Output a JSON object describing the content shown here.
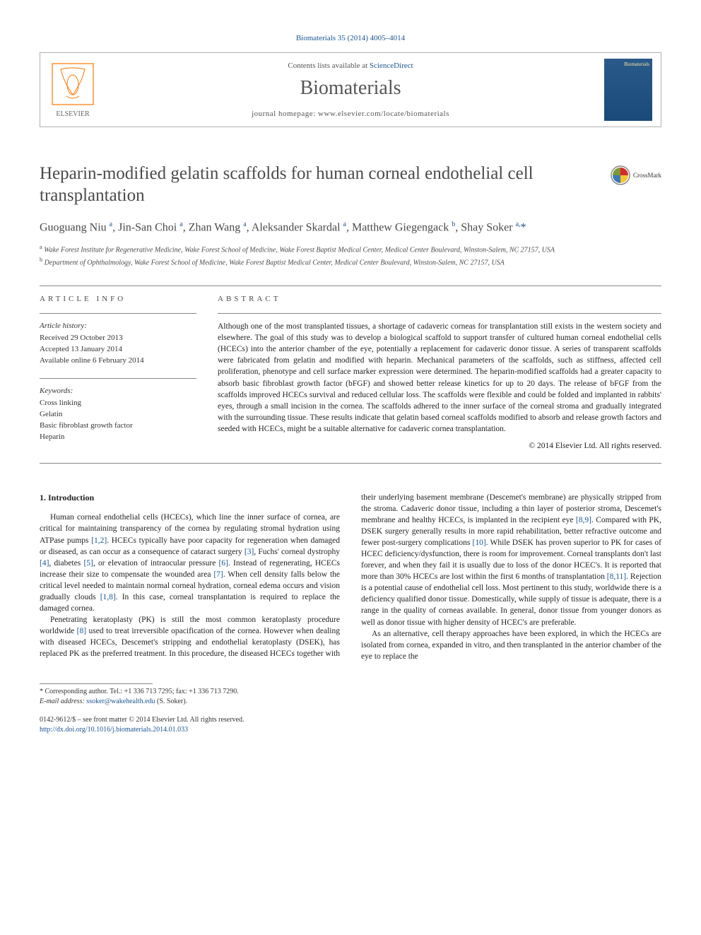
{
  "citation": "Biomaterials 35 (2014) 4005–4014",
  "header": {
    "contents_prefix": "Contents lists available at ",
    "contents_link": "ScienceDirect",
    "journal": "Biomaterials",
    "homepage_prefix": "journal homepage: ",
    "homepage": "www.elsevier.com/locate/biomaterials"
  },
  "title": "Heparin-modified gelatin scaffolds for human corneal endothelial cell transplantation",
  "crossmark_label": "CrossMark",
  "authors_html": "Guoguang Niu <sup>a</sup>, Jin-San Choi <sup>a</sup>, Zhan Wang <sup>a</sup>, Aleksander Skardal <sup>a</sup>, Matthew Giegengack <sup>b</sup>, Shay Soker <sup>a,</sup><span class='corr-star'>*</span>",
  "affiliations": {
    "a": "Wake Forest Institute for Regenerative Medicine, Wake Forest School of Medicine, Wake Forest Baptist Medical Center, Medical Center Boulevard, Winston-Salem, NC 27157, USA",
    "b": "Department of Ophthalmology, Wake Forest School of Medicine, Wake Forest Baptist Medical Center, Medical Center Boulevard, Winston-Salem, NC 27157, USA"
  },
  "info": {
    "heading": "ARTICLE INFO",
    "history_heading": "Article history:",
    "received": "Received 29 October 2013",
    "accepted": "Accepted 13 January 2014",
    "online": "Available online 6 February 2014",
    "keywords_heading": "Keywords:",
    "keywords": [
      "Cross linking",
      "Gelatin",
      "Basic fibroblast growth factor",
      "Heparin"
    ]
  },
  "abstract": {
    "heading": "ABSTRACT",
    "text": "Although one of the most transplanted tissues, a shortage of cadaveric corneas for transplantation still exists in the western society and elsewhere. The goal of this study was to develop a biological scaffold to support transfer of cultured human corneal endothelial cells (HCECs) into the anterior chamber of the eye, potentially a replacement for cadaveric donor tissue. A series of transparent scaffolds were fabricated from gelatin and modified with heparin. Mechanical parameters of the scaffolds, such as stiffness, affected cell proliferation, phenotype and cell surface marker expression were determined. The heparin-modified scaffolds had a greater capacity to absorb basic fibroblast growth factor (bFGF) and showed better release kinetics for up to 20 days. The release of bFGF from the scaffolds improved HCECs survival and reduced cellular loss. The scaffolds were flexible and could be folded and implanted in rabbits' eyes, through a small incision in the cornea. The scaffolds adhered to the inner surface of the corneal stroma and gradually integrated with the surrounding tissue. These results indicate that gelatin based corneal scaffolds modified to absorb and release growth factors and seeded with HCECs, might be a suitable alternative for cadaveric cornea transplantation.",
    "copyright": "© 2014 Elsevier Ltd. All rights reserved."
  },
  "body": {
    "heading": "1. Introduction",
    "p1a": "Human corneal endothelial cells (HCECs), which line the inner surface of cornea, are critical for maintaining transparency of the cornea by regulating stromal hydration using ATPase pumps ",
    "r1": "[1,2]",
    "p1b": ". HCECs typically have poor capacity for regeneration when damaged or diseased, as can occur as a consequence of cataract surgery ",
    "r2": "[3]",
    "p1c": ", Fuchs' corneal dystrophy ",
    "r3": "[4]",
    "p1d": ", diabetes ",
    "r4": "[5]",
    "p1e": ", or elevation of intraocular pressure ",
    "r5": "[6]",
    "p1f": ". Instead of regenerating, HCECs increase their size to compensate the wounded area ",
    "r6": "[7]",
    "p1g": ". When cell density falls below the critical level needed to maintain normal corneal hydration, corneal edema occurs and vision gradually clouds ",
    "r7": "[1,8]",
    "p1h": ". In this case, corneal transplantation is required to replace the damaged cornea.",
    "p2a": "Penetrating keratoplasty (PK) is still the most common keratoplasty procedure worldwide ",
    "r8": "[8]",
    "p2b": " used to treat irreversible opacification of the cornea. However when dealing with diseased HCECs, Descemet's stripping and endothelial keratoplasty (DSEK), has replaced PK as the preferred treatment. In this procedure, the diseased HCECs together with their underlying basement membrane (Descemet's membrane) are physically stripped from the stroma. Cadaveric donor tissue, including a thin layer of posterior stroma, Descemet's membrane and healthy HCECs, is implanted in the recipient eye ",
    "r9": "[8,9]",
    "p2c": ". Compared with PK, DSEK surgery generally results in more rapid rehabilitation, better refractive outcome and fewer post-surgery complications ",
    "r10": "[10]",
    "p2d": ". While DSEK has proven superior to PK for cases of HCEC deficiency/dysfunction, there is room for improvement. Corneal transplants don't last forever, and when they fail it is usually due to loss of the donor HCEC's. It is reported that more than 30% HCECs are lost within the first 6 months of transplantation ",
    "r11": "[8,11]",
    "p2e": ". Rejection is a potential cause of endothelial cell loss. Most pertinent to this study, worldwide there is a deficiency qualified donor tissue. Domestically, while supply of tissue is adequate, there is a range in the quality of corneas available. In general, donor tissue from younger donors as well as donor tissue with higher density of HCEC's are preferable.",
    "p3": "As an alternative, cell therapy approaches have been explored, in which the HCECs are isolated from cornea, expanded in vitro, and then transplanted in the anterior chamber of the eye to replace the"
  },
  "footer": {
    "corr": "* Corresponding author. Tel.: +1 336 713 7295; fax: +1 336 713 7290.",
    "email_label": "E-mail address: ",
    "email": "ssoker@wakehealth.edu",
    "email_suffix": " (S. Soker).",
    "issn": "0142-9612/$ – see front matter © 2014 Elsevier Ltd. All rights reserved.",
    "doi": "http://dx.doi.org/10.1016/j.biomaterials.2014.01.033"
  },
  "colors": {
    "link": "#1a5490",
    "text": "#222222",
    "heading_gray": "#4a4a4a",
    "border": "#888888",
    "elsevier_orange": "#ff7800",
    "elsevier_text": "#666666"
  }
}
